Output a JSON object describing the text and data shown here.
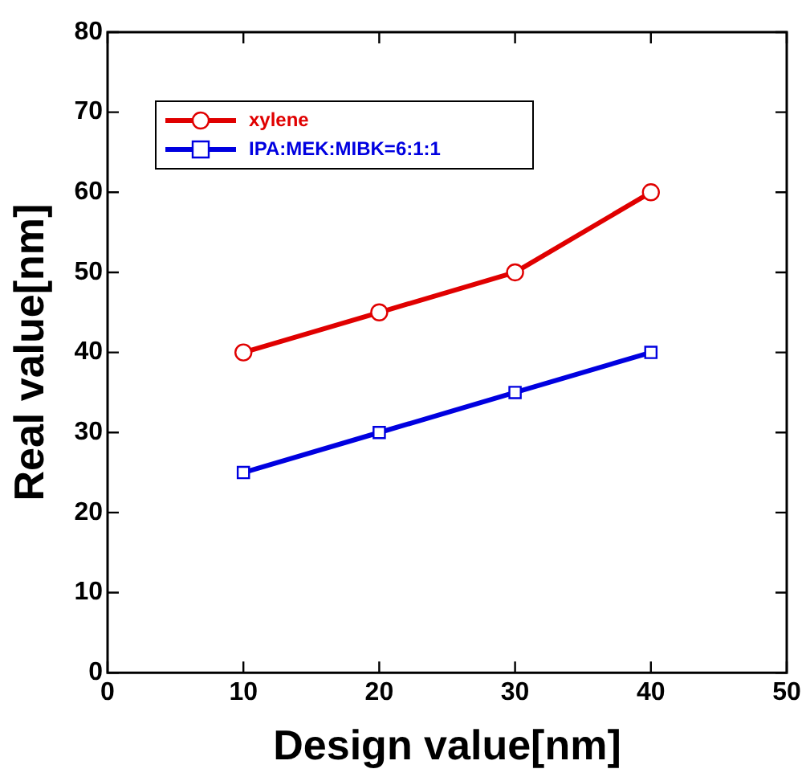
{
  "chart_data": {
    "type": "line",
    "xlabel": "Design value[nm]",
    "ylabel": "Real value[nm]",
    "x": [
      10,
      20,
      30,
      40
    ],
    "xlim": [
      0,
      50
    ],
    "xticks": [
      0,
      10,
      20,
      30,
      40,
      50
    ],
    "ylim": [
      0,
      80
    ],
    "yticks": [
      0,
      10,
      20,
      30,
      40,
      50,
      60,
      70,
      80
    ],
    "grid": false,
    "legend": "top left",
    "line_style": "solid",
    "series": [
      {
        "name": "xylene",
        "color": "#e00000",
        "marker": "circle",
        "values": [
          40,
          45,
          50,
          60
        ]
      },
      {
        "name": "IPA:MEK:MIBK=6:1:1",
        "color": "#0000e0",
        "marker": "square",
        "values": [
          25,
          30,
          35,
          40
        ]
      }
    ]
  }
}
